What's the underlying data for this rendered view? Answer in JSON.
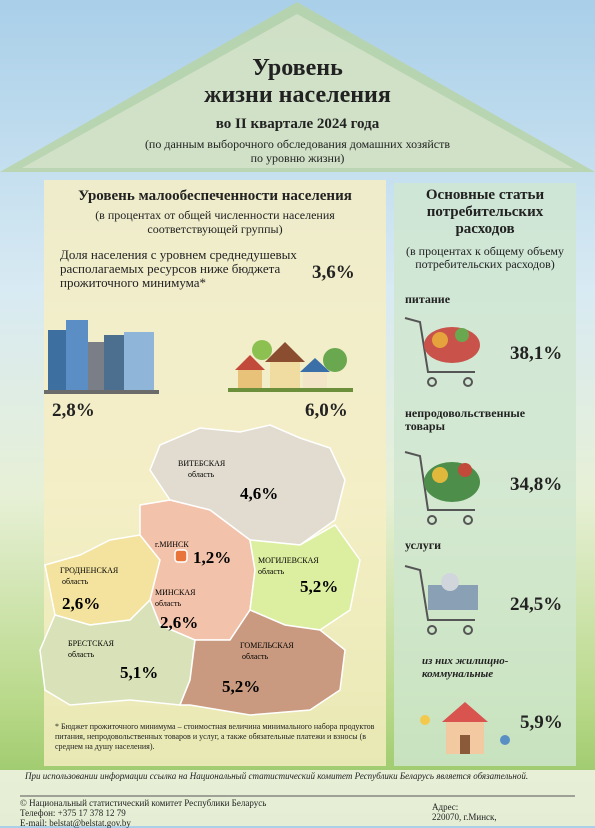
{
  "header": {
    "title_line1": "Уровень",
    "title_line2": "жизни населения",
    "period": "во II квартале 2024 года",
    "note": "(по данным выборочного обследования домашних хозяйств по уровню жизни)"
  },
  "poverty": {
    "title": "Уровень малообеспеченности населения",
    "subtitle": "(в процентах от общей численности населения соответствующей группы)",
    "share_label": "Доля населения с уровнем среднедушевых располагаемых ресурсов ниже бюджета прожиточного минимума*",
    "share_value": "3,6%",
    "urban_value": "2,8%",
    "rural_value": "6,0%",
    "regions": [
      {
        "name": "ВИТЕБСКАЯ",
        "unit": "область",
        "value": "4,6%"
      },
      {
        "name": "г.МИНСК",
        "value": "1,2%"
      },
      {
        "name": "ГРОДНЕНСКАЯ",
        "unit": "область",
        "value": "2,6%"
      },
      {
        "name": "МИНСКАЯ",
        "unit": "область",
        "value": "2,6%"
      },
      {
        "name": "МОГИЛЕВСКАЯ",
        "unit": "область",
        "value": "5,2%"
      },
      {
        "name": "БРЕСТСКАЯ",
        "unit": "область",
        "value": "5,1%"
      },
      {
        "name": "ГОМЕЛЬСКАЯ",
        "unit": "область",
        "value": "5,2%"
      }
    ],
    "footnote": "* Бюджет прожиточного минимума – стоимостная величина минимального набора продуктов питания, непродовольственных товаров и услуг, а также обязательные платежи и взносы (в среднем на душу населения)."
  },
  "expenses": {
    "title": "Основные статьи потребительских расходов",
    "subtitle": "(в процентах к общему объему потребительских расходов)",
    "items": [
      {
        "label": "питание",
        "value": "38,1%"
      },
      {
        "label": "непродовольственные товары",
        "value": "34,8%"
      },
      {
        "label": "услуги",
        "value": "24,5%"
      },
      {
        "label": "из них жилищно-коммунальные",
        "value": "5,9%"
      }
    ]
  },
  "footer": {
    "notice": "При использовании информации ссылка на Национальный статистический комитет Республики Беларусь является обязательной.",
    "copyright": "© Национальный статистический комитет Республики Беларусь",
    "phone": "Телефон: +375 17 378 12 79",
    "email": "E-mail: belstat@belstat.gov.by",
    "address_label": "Адрес:",
    "address": "220070, г.Минск,"
  }
}
